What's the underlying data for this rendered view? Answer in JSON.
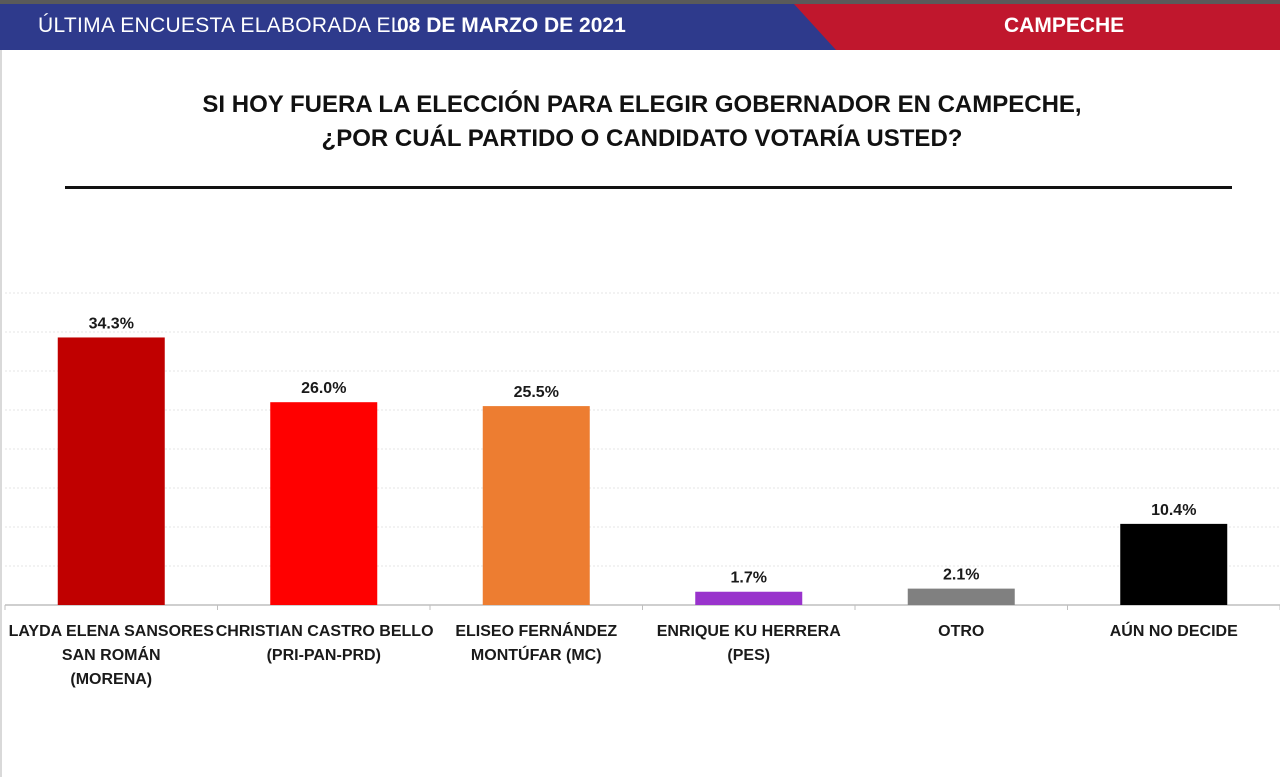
{
  "header": {
    "prefix": "ÚLTIMA ENCUESTA ELABORADA EL",
    "date": "08 DE MARZO DE 2021",
    "state": "CAMPECHE",
    "colors": {
      "blue": "#2e3a8c",
      "red": "#c0172d"
    }
  },
  "question": {
    "line1": "SI HOY FUERA LA ELECCIÓN PARA ELEGIR GOBERNADOR EN CAMPECHE,",
    "line2": "¿POR CUÁL PARTIDO O CANDIDATO VOTARÍA USTED?"
  },
  "chart_data": {
    "type": "bar",
    "categories": [
      [
        "LAYDA ELENA SANSORES",
        "SAN ROMÁN",
        "(MORENA)"
      ],
      [
        "CHRISTIAN CASTRO BELLO",
        "(PRI-PAN-PRD)"
      ],
      [
        "ELISEO FERNÁNDEZ",
        "MONTÚFAR (MC)"
      ],
      [
        "ENRIQUE KU HERRERA",
        "(PES)"
      ],
      [
        "OTRO"
      ],
      [
        "AÚN NO DECIDE"
      ]
    ],
    "values": [
      34.3,
      26.0,
      25.5,
      1.7,
      2.1,
      10.4
    ],
    "value_labels": [
      "34.3%",
      "26.0%",
      "25.5%",
      "1.7%",
      "2.1%",
      "10.4%"
    ],
    "colors": [
      "#c00000",
      "#ff0000",
      "#ed7d31",
      "#9933cc",
      "#808080",
      "#000000"
    ],
    "ylim": [
      0,
      40
    ],
    "grid": true,
    "legend": "none"
  }
}
